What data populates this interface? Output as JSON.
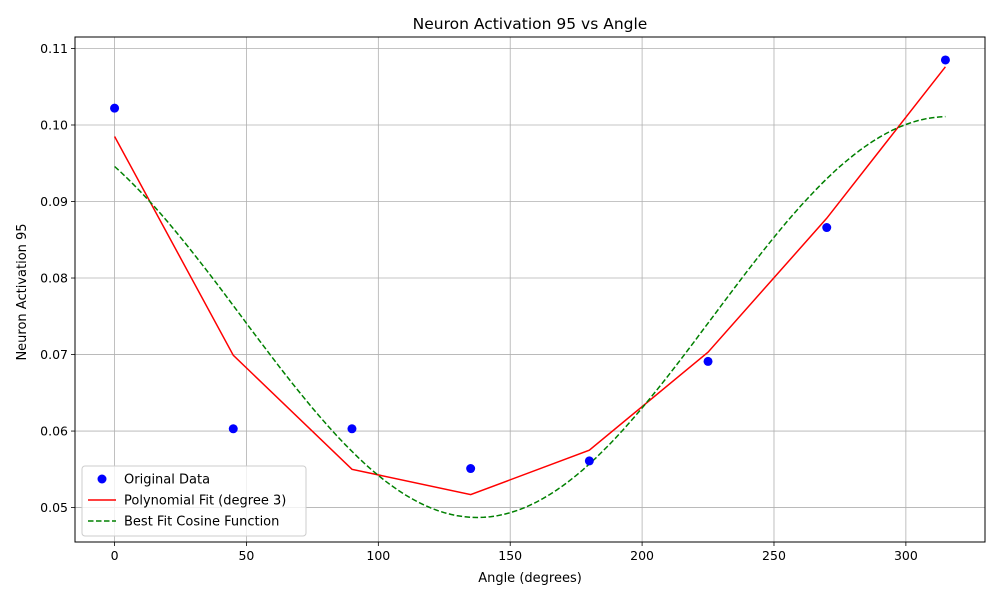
{
  "chart_data": {
    "type": "scatter",
    "title": "Neuron Activation 95 vs Angle",
    "xlabel": "Angle (degrees)",
    "ylabel": "Neuron Activation 95",
    "xlim": [
      -15,
      330
    ],
    "ylim": [
      0.0455,
      0.1115
    ],
    "xticks": [
      0,
      50,
      100,
      150,
      200,
      250,
      300
    ],
    "yticks": [
      0.05,
      0.06,
      0.07,
      0.08,
      0.09,
      0.1,
      0.11
    ],
    "ytick_labels": [
      "0.05",
      "0.06",
      "0.07",
      "0.08",
      "0.09",
      "0.10",
      "0.11"
    ],
    "grid": true,
    "legend_position": "lower-left",
    "series": [
      {
        "name": "Original Data",
        "kind": "scatter",
        "color": "#0000ff",
        "x": [
          0,
          45,
          90,
          135,
          180,
          225,
          270,
          315
        ],
        "y": [
          0.1022,
          0.0603,
          0.0603,
          0.0551,
          0.0561,
          0.0691,
          0.0866,
          0.1085
        ]
      },
      {
        "name": "Polynomial Fit (degree 3)",
        "kind": "line",
        "style": "solid",
        "color": "#ff0000",
        "x": [
          0,
          45,
          90,
          135,
          180,
          225,
          270,
          315
        ],
        "y": [
          0.0985,
          0.0699,
          0.055,
          0.0517,
          0.0575,
          0.0703,
          0.0878,
          0.1076
        ]
      },
      {
        "name": "Best Fit Cosine Function",
        "kind": "line",
        "style": "dashed",
        "color": "#008000",
        "model": {
          "amplitude": 0.0262,
          "period": 357,
          "phase": 137.5,
          "offset": 0.0749
        },
        "x_range": [
          0,
          315
        ]
      }
    ]
  }
}
